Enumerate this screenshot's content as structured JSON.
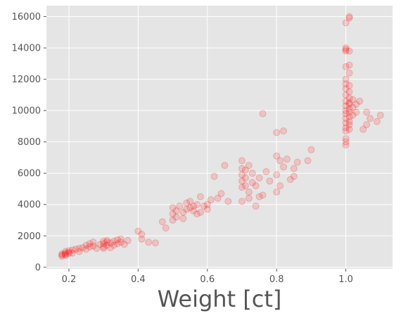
{
  "chart_data": {
    "type": "scatter",
    "title": "",
    "xlabel": "Weight [ct]",
    "ylabel": "",
    "xlim": [
      0.135,
      1.135
    ],
    "ylim": [
      -100,
      16700
    ],
    "xticks": [
      0.2,
      0.4,
      0.6,
      0.8,
      1.0
    ],
    "xtick_labels": [
      "0.2",
      "0.4",
      "0.6",
      "0.8",
      "1.0"
    ],
    "yticks": [
      0,
      2000,
      4000,
      6000,
      8000,
      10000,
      12000,
      14000,
      16000
    ],
    "ytick_labels": [
      "0",
      "2000",
      "4000",
      "6000",
      "8000",
      "10000",
      "12000",
      "14000",
      "16000"
    ],
    "grid": true,
    "colors": {
      "background": "#e5e5e5",
      "grid": "#ffffff",
      "marker": "#ff0000",
      "text": "#555555"
    },
    "series": [
      {
        "x": [
          0.18,
          0.18,
          0.19,
          0.19,
          0.19,
          0.2,
          0.2,
          0.18,
          0.19,
          0.2,
          0.21,
          0.21,
          0.22,
          0.23,
          0.23,
          0.24,
          0.25,
          0.25,
          0.26,
          0.26,
          0.27,
          0.27,
          0.28,
          0.29,
          0.3,
          0.3,
          0.3,
          0.3,
          0.31,
          0.31,
          0.31,
          0.32,
          0.32,
          0.33,
          0.33,
          0.34,
          0.34,
          0.35,
          0.35,
          0.36,
          0.37,
          0.4,
          0.41,
          0.41,
          0.43,
          0.45,
          0.47,
          0.48,
          0.5,
          0.5,
          0.5,
          0.51,
          0.51,
          0.52,
          0.53,
          0.53,
          0.54,
          0.54,
          0.55,
          0.55,
          0.56,
          0.56,
          0.57,
          0.57,
          0.58,
          0.58,
          0.59,
          0.6,
          0.6,
          0.61,
          0.62,
          0.63,
          0.64,
          0.65,
          0.66,
          0.7,
          0.7,
          0.7,
          0.7,
          0.7,
          0.71,
          0.71,
          0.71,
          0.72,
          0.72,
          0.73,
          0.73,
          0.74,
          0.75,
          0.75,
          0.76,
          0.77,
          0.78,
          0.8,
          0.8,
          0.8,
          0.81,
          0.81,
          0.82,
          0.83,
          0.84,
          0.85,
          0.85,
          0.86,
          0.89,
          0.9,
          0.7,
          0.72,
          0.74,
          0.76,
          0.8,
          0.82,
          1.0,
          1.0,
          1.0,
          1.0,
          1.0,
          1.0,
          1.0,
          1.0,
          1.0,
          1.0,
          1.0,
          1.0,
          1.0,
          1.0,
          1.0,
          1.0,
          1.0,
          1.0,
          1.0,
          1.0,
          1.01,
          1.01,
          1.01,
          1.01,
          1.01,
          1.01,
          1.01,
          1.01,
          1.01,
          1.01,
          1.01,
          1.01,
          1.01,
          1.01,
          1.01,
          1.01,
          1.02,
          1.02,
          1.02,
          1.03,
          1.03,
          1.04,
          1.05,
          1.06,
          1.06,
          1.07,
          1.09,
          1.1
        ],
        "y": [
          780,
          850,
          900,
          820,
          760,
          950,
          880,
          700,
          1000,
          1050,
          1100,
          900,
          1150,
          1200,
          1000,
          1250,
          1150,
          1400,
          1300,
          1500,
          1350,
          1600,
          1200,
          1450,
          1300,
          1500,
          1650,
          1200,
          1400,
          1600,
          1700,
          1250,
          1550,
          1400,
          1650,
          1500,
          1750,
          1600,
          1800,
          1450,
          1700,
          2300,
          1800,
          2100,
          1600,
          1550,
          2900,
          2500,
          3000,
          3400,
          3800,
          3200,
          3600,
          3900,
          3100,
          3500,
          3700,
          4100,
          3800,
          4200,
          3600,
          3900,
          3400,
          4000,
          3500,
          4500,
          3900,
          4000,
          3700,
          4300,
          5800,
          4400,
          4700,
          6500,
          4200,
          5100,
          5500,
          5900,
          6300,
          6800,
          5200,
          5700,
          6200,
          4800,
          6500,
          5400,
          6000,
          5200,
          4500,
          5700,
          9800,
          6100,
          5500,
          4800,
          5900,
          7100,
          5200,
          6800,
          6400,
          6900,
          5600,
          5800,
          6300,
          6700,
          6800,
          7500,
          4200,
          4400,
          3900,
          4600,
          8600,
          8700,
          7800,
          8000,
          8200,
          8700,
          8900,
          9200,
          9500,
          9800,
          10000,
          10300,
          10600,
          11000,
          11400,
          11700,
          12000,
          12800,
          13800,
          13900,
          14000,
          15600,
          8800,
          9100,
          9600,
          10100,
          10500,
          10800,
          11200,
          11600,
          12400,
          13800,
          15900,
          9300,
          9900,
          10400,
          12900,
          16000,
          9700,
          10200,
          10700,
          9900,
          10400,
          10600,
          8800,
          9100,
          9900,
          9500,
          9300,
          9700
        ]
      }
    ]
  }
}
